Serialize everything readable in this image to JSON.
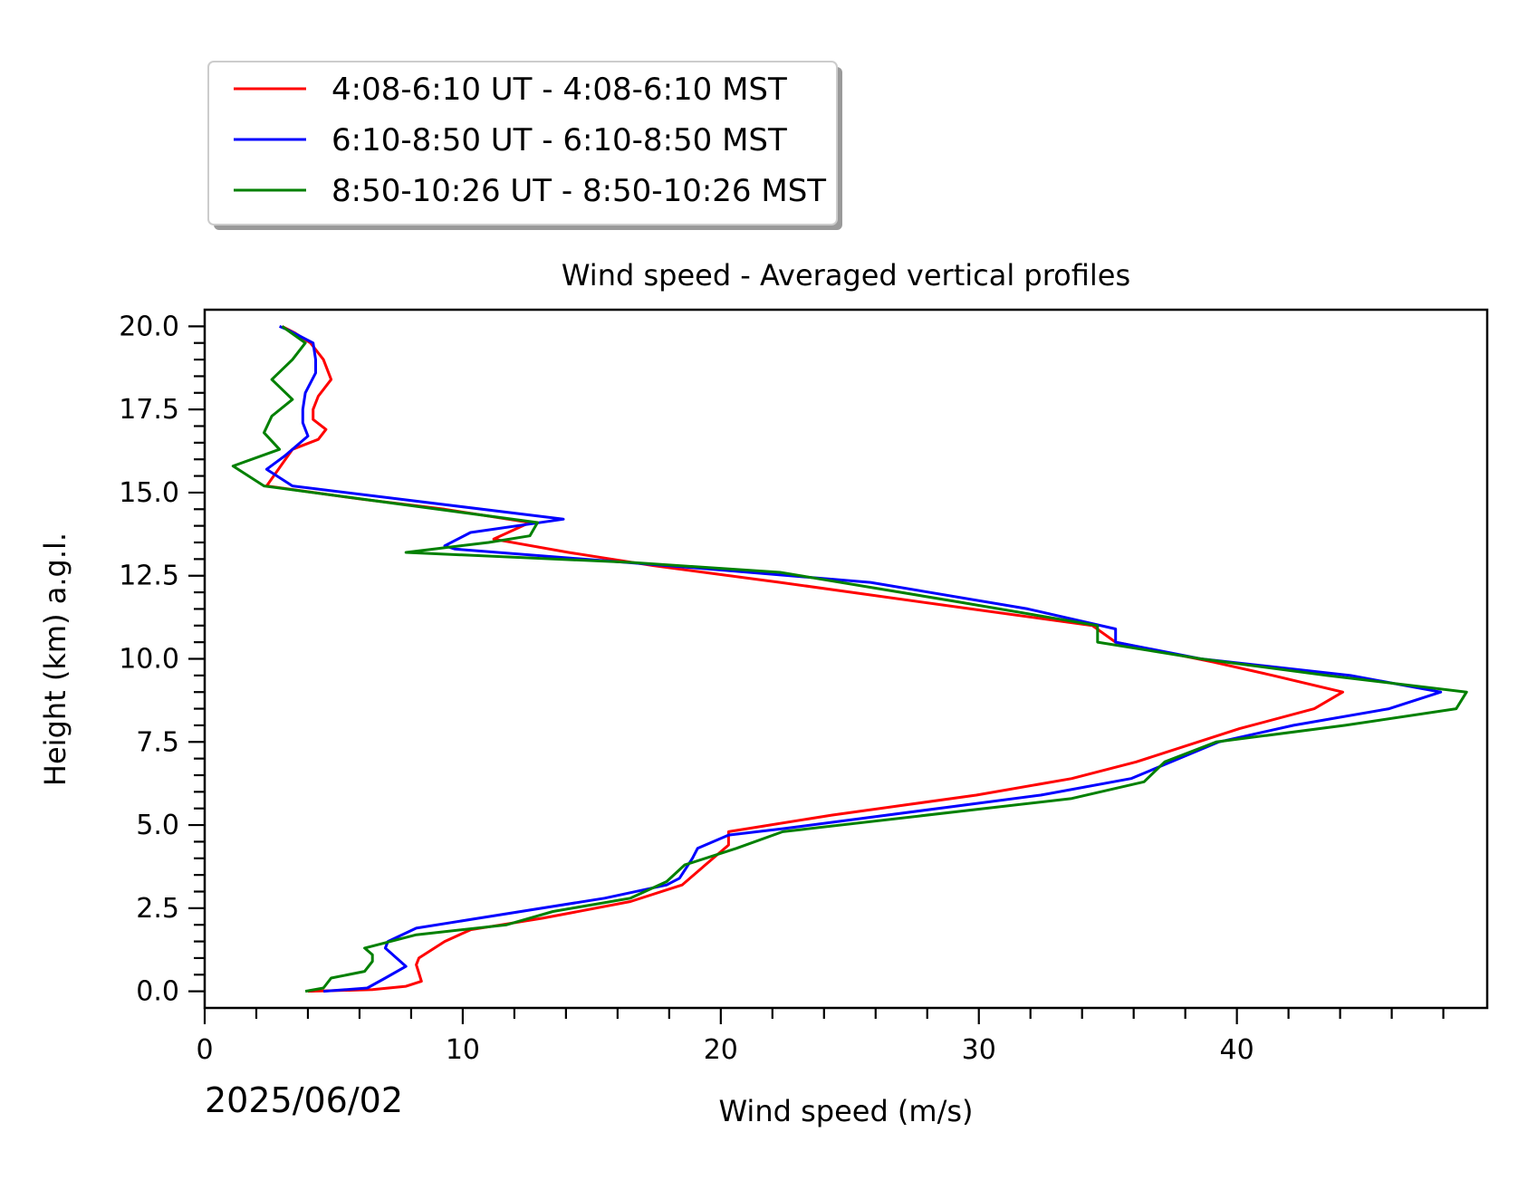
{
  "chart_data": {
    "type": "line",
    "title": "Wind speed - Averaged vertical profiles",
    "xlabel": "Wind speed (m/s)",
    "ylabel": "Height (km) a.g.l.",
    "date_label": "2025/06/02",
    "xlim": [
      0,
      49.7
    ],
    "ylim": [
      -0.5,
      20.5
    ],
    "xticks": [
      0,
      10,
      20,
      30,
      40
    ],
    "xtick_labels": [
      "0",
      "10",
      "20",
      "30",
      "40"
    ],
    "yticks": [
      0.0,
      2.5,
      5.0,
      7.5,
      10.0,
      12.5,
      15.0,
      17.5,
      20.0
    ],
    "ytick_labels": [
      "0.0",
      "2.5",
      "5.0",
      "7.5",
      "10.0",
      "12.5",
      "15.0",
      "17.5",
      "20.0"
    ],
    "grid": false,
    "legend_position": "above-left",
    "series": [
      {
        "name": "4:08-6:10 UT - 4:08-6:10 MST",
        "color": "#ff0000",
        "points": [
          [
            4.0,
            0.0
          ],
          [
            6.5,
            0.05
          ],
          [
            7.8,
            0.15
          ],
          [
            8.4,
            0.3
          ],
          [
            8.3,
            0.55
          ],
          [
            8.2,
            0.8
          ],
          [
            8.3,
            1.0
          ],
          [
            9.3,
            1.5
          ],
          [
            10.3,
            1.85
          ],
          [
            13.1,
            2.2
          ],
          [
            16.5,
            2.7
          ],
          [
            18.5,
            3.2
          ],
          [
            19.1,
            3.6
          ],
          [
            19.4,
            3.8
          ],
          [
            20.3,
            4.4
          ],
          [
            20.3,
            4.8
          ],
          [
            24.3,
            5.3
          ],
          [
            29.9,
            5.9
          ],
          [
            33.6,
            6.4
          ],
          [
            36.1,
            6.9
          ],
          [
            40.1,
            7.9
          ],
          [
            43.0,
            8.5
          ],
          [
            44.1,
            9.0
          ],
          [
            41.4,
            9.5
          ],
          [
            39.1,
            9.9
          ],
          [
            35.3,
            10.5
          ],
          [
            34.4,
            11.0
          ],
          [
            29.7,
            11.5
          ],
          [
            22.3,
            12.3
          ],
          [
            17.4,
            12.8
          ],
          [
            14.1,
            13.2
          ],
          [
            11.2,
            13.6
          ],
          [
            12.6,
            14.1
          ],
          [
            9.3,
            14.5
          ],
          [
            6.1,
            14.8
          ],
          [
            2.4,
            15.2
          ],
          [
            3.4,
            16.3
          ],
          [
            4.4,
            16.6
          ],
          [
            4.7,
            16.9
          ],
          [
            4.2,
            17.2
          ],
          [
            4.2,
            17.5
          ],
          [
            4.4,
            17.9
          ],
          [
            4.9,
            18.4
          ],
          [
            4.6,
            19.0
          ],
          [
            4.1,
            19.5
          ],
          [
            3.5,
            19.8
          ],
          [
            3.0,
            20.0
          ]
        ]
      },
      {
        "name": "6:10-8:50 UT - 6:10-8:50 MST",
        "color": "#0000ff",
        "points": [
          [
            4.6,
            0.0
          ],
          [
            6.3,
            0.1
          ],
          [
            7.0,
            0.4
          ],
          [
            7.8,
            0.75
          ],
          [
            7.0,
            1.3
          ],
          [
            7.1,
            1.5
          ],
          [
            8.2,
            1.9
          ],
          [
            15.5,
            2.8
          ],
          [
            17.9,
            3.2
          ],
          [
            18.4,
            3.4
          ],
          [
            18.9,
            4.0
          ],
          [
            19.1,
            4.3
          ],
          [
            20.3,
            4.7
          ],
          [
            22.5,
            4.9
          ],
          [
            32.4,
            5.9
          ],
          [
            35.9,
            6.4
          ],
          [
            39.3,
            7.5
          ],
          [
            42.2,
            8.0
          ],
          [
            45.9,
            8.5
          ],
          [
            47.9,
            9.0
          ],
          [
            44.4,
            9.5
          ],
          [
            38.6,
            10.0
          ],
          [
            35.3,
            10.5
          ],
          [
            35.3,
            10.9
          ],
          [
            31.9,
            11.5
          ],
          [
            25.8,
            12.3
          ],
          [
            18.0,
            12.8
          ],
          [
            9.7,
            13.3
          ],
          [
            9.3,
            13.4
          ],
          [
            10.3,
            13.8
          ],
          [
            13.9,
            14.2
          ],
          [
            3.4,
            15.2
          ],
          [
            2.4,
            15.7
          ],
          [
            3.1,
            16.1
          ],
          [
            4.0,
            16.7
          ],
          [
            3.8,
            17.1
          ],
          [
            3.8,
            17.5
          ],
          [
            3.9,
            18.0
          ],
          [
            4.3,
            18.6
          ],
          [
            4.3,
            19.0
          ],
          [
            4.2,
            19.5
          ],
          [
            3.2,
            19.9
          ],
          [
            2.9,
            20.0
          ]
        ]
      },
      {
        "name": "8:50-10:26 UT - 8:50-10:26 MST",
        "color": "#008000",
        "points": [
          [
            3.9,
            0.0
          ],
          [
            4.6,
            0.1
          ],
          [
            4.9,
            0.4
          ],
          [
            6.2,
            0.6
          ],
          [
            6.5,
            0.9
          ],
          [
            6.5,
            1.1
          ],
          [
            6.2,
            1.3
          ],
          [
            8.2,
            1.7
          ],
          [
            11.7,
            2.0
          ],
          [
            13.5,
            2.4
          ],
          [
            16.5,
            2.8
          ],
          [
            17.9,
            3.3
          ],
          [
            18.6,
            3.8
          ],
          [
            20.6,
            4.3
          ],
          [
            22.4,
            4.8
          ],
          [
            33.6,
            5.8
          ],
          [
            36.4,
            6.3
          ],
          [
            37.2,
            6.9
          ],
          [
            39.2,
            7.5
          ],
          [
            44.2,
            8.0
          ],
          [
            48.5,
            8.5
          ],
          [
            48.9,
            9.0
          ],
          [
            43.5,
            9.5
          ],
          [
            38.6,
            10.0
          ],
          [
            34.6,
            10.5
          ],
          [
            34.6,
            11.0
          ],
          [
            29.3,
            11.7
          ],
          [
            22.3,
            12.6
          ],
          [
            16.5,
            12.9
          ],
          [
            7.8,
            13.2
          ],
          [
            11.0,
            13.5
          ],
          [
            12.6,
            13.7
          ],
          [
            12.9,
            14.1
          ],
          [
            2.3,
            15.2
          ],
          [
            1.1,
            15.8
          ],
          [
            2.9,
            16.3
          ],
          [
            2.3,
            16.8
          ],
          [
            2.6,
            17.3
          ],
          [
            3.4,
            17.8
          ],
          [
            2.6,
            18.4
          ],
          [
            3.4,
            19.0
          ],
          [
            3.9,
            19.5
          ],
          [
            3.0,
            20.0
          ]
        ]
      }
    ]
  }
}
